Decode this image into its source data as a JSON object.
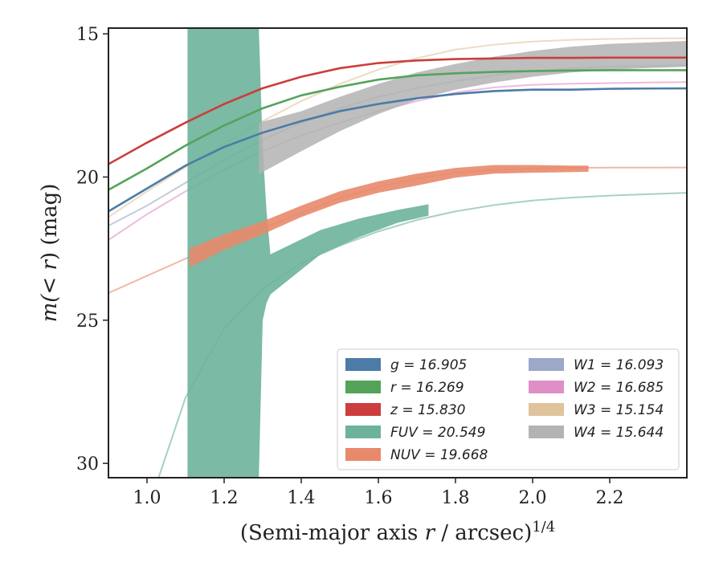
{
  "chart_data": {
    "type": "line",
    "xlabel_main": "(Semi-major axis ",
    "xlabel_var": "r",
    "xlabel_unit": " / arcsec)",
    "xlabel_exp": "1/4",
    "ylabel_pre": "m(< ",
    "ylabel_var": "r",
    "ylabel_post": ") (mag)",
    "xlim": [
      0.9,
      2.4
    ],
    "ylim": [
      30.5,
      14.8
    ],
    "y_inverted": true,
    "xticks": [
      "1.0",
      "1.2",
      "1.4",
      "1.6",
      "1.8",
      "2.0",
      "2.2"
    ],
    "yticks": [
      "15",
      "20",
      "25",
      "30"
    ],
    "legend_position": "lower-right",
    "series": [
      {
        "name": "g = 16.905",
        "color": "#4c7ba8",
        "curve": {
          "x": [
            0.9,
            1.0,
            1.1,
            1.2,
            1.3,
            1.4,
            1.5,
            1.6,
            1.7,
            1.8,
            1.9,
            2.0,
            2.1,
            2.2,
            2.3,
            2.4
          ],
          "y": [
            21.2,
            20.4,
            19.6,
            18.95,
            18.45,
            18.05,
            17.7,
            17.45,
            17.25,
            17.1,
            17.0,
            16.95,
            16.95,
            16.92,
            16.91,
            16.905
          ]
        }
      },
      {
        "name": "r = 16.269",
        "color": "#55a35a",
        "curve": {
          "x": [
            0.9,
            1.0,
            1.1,
            1.2,
            1.3,
            1.4,
            1.5,
            1.6,
            1.7,
            1.8,
            1.9,
            2.0,
            2.1,
            2.2,
            2.3,
            2.4
          ],
          "y": [
            20.45,
            19.7,
            18.9,
            18.2,
            17.6,
            17.15,
            16.85,
            16.6,
            16.45,
            16.38,
            16.33,
            16.3,
            16.28,
            16.27,
            16.27,
            16.269
          ]
        }
      },
      {
        "name": "z = 15.830",
        "color": "#cc3d3d",
        "curve": {
          "x": [
            0.9,
            1.0,
            1.1,
            1.2,
            1.3,
            1.4,
            1.5,
            1.6,
            1.7,
            1.8,
            1.9,
            2.0,
            2.1,
            2.2,
            2.3,
            2.4
          ],
          "y": [
            19.55,
            18.8,
            18.1,
            17.45,
            16.9,
            16.5,
            16.2,
            16.02,
            15.93,
            15.88,
            15.86,
            15.84,
            15.84,
            15.83,
            15.83,
            15.83
          ]
        }
      },
      {
        "name": "FUV = 20.549",
        "color": "#6db39a",
        "curve": {
          "x": [
            1.03,
            1.1,
            1.2,
            1.3,
            1.4,
            1.5,
            1.6,
            1.7,
            1.8,
            1.9,
            2.0,
            2.1,
            2.2,
            2.3,
            2.4
          ],
          "y": [
            30.5,
            27.7,
            25.3,
            23.9,
            23.0,
            22.4,
            21.9,
            21.5,
            21.2,
            20.98,
            20.82,
            20.72,
            20.65,
            20.6,
            20.55
          ]
        },
        "band": {
          "x": [
            1.105,
            1.29,
            1.3,
            1.31,
            1.32,
            1.45,
            1.55,
            1.65,
            1.73
          ],
          "y_low": [
            30.5,
            30.5,
            25.0,
            24.4,
            24.1,
            22.7,
            22.1,
            21.6,
            21.35
          ],
          "y_high": [
            14.8,
            14.8,
            19.0,
            21.2,
            22.7,
            21.85,
            21.45,
            21.15,
            20.95
          ]
        }
      },
      {
        "name": "NUV = 19.668",
        "color": "#e8896b",
        "curve": {
          "x": [
            0.9,
            1.0,
            1.1,
            1.2,
            1.3,
            1.4,
            1.5,
            1.6,
            1.7,
            1.8,
            1.9,
            2.0,
            2.1,
            2.2,
            2.3,
            2.4
          ],
          "y": [
            24.05,
            23.45,
            22.85,
            22.3,
            21.8,
            21.25,
            20.75,
            20.35,
            20.05,
            19.85,
            19.75,
            19.7,
            19.68,
            19.67,
            19.67,
            19.668
          ]
        },
        "band": {
          "x": [
            1.11,
            1.2,
            1.3,
            1.4,
            1.5,
            1.6,
            1.7,
            1.8,
            1.9,
            2.0,
            2.1,
            2.145
          ],
          "y_low": [
            23.15,
            22.55,
            22.0,
            21.4,
            20.9,
            20.55,
            20.3,
            20.02,
            19.88,
            19.85,
            19.83,
            19.82
          ],
          "y_high": [
            22.5,
            22.0,
            21.55,
            21.0,
            20.5,
            20.15,
            19.88,
            19.68,
            19.58,
            19.58,
            19.6,
            19.6
          ]
        }
      },
      {
        "name": "W1 = 16.093",
        "color": "#9ba8c8",
        "curve": {
          "x": [
            0.9,
            1.0,
            1.1,
            1.2,
            1.3,
            1.4,
            1.5,
            1.6,
            1.7,
            1.8,
            1.9,
            2.0,
            2.1,
            2.2,
            2.3,
            2.4
          ],
          "y": [
            21.7,
            21.0,
            20.2,
            19.4,
            18.7,
            18.1,
            17.6,
            17.2,
            16.9,
            16.65,
            16.45,
            16.3,
            16.2,
            16.15,
            16.12,
            16.093
          ]
        }
      },
      {
        "name": "W2 = 16.685",
        "color": "#dd8fc6",
        "curve": {
          "x": [
            0.9,
            1.0,
            1.1,
            1.2,
            1.3,
            1.4,
            1.5,
            1.6,
            1.7,
            1.8,
            1.9,
            2.0,
            2.1,
            2.2,
            2.3,
            2.4
          ],
          "y": [
            22.2,
            21.3,
            20.5,
            19.75,
            19.1,
            18.55,
            18.1,
            17.7,
            17.35,
            17.05,
            16.87,
            16.78,
            16.74,
            16.72,
            16.7,
            16.685
          ]
        }
      },
      {
        "name": "W3 = 15.154",
        "color": "#dfc39c",
        "curve": {
          "x": [
            0.9,
            1.0,
            1.1,
            1.2,
            1.3,
            1.4,
            1.5,
            1.6,
            1.7,
            1.8,
            1.9,
            2.0,
            2.1,
            2.2,
            2.3,
            2.4
          ],
          "y": [
            21.4,
            20.5,
            19.65,
            18.85,
            18.05,
            17.35,
            16.75,
            16.25,
            15.85,
            15.55,
            15.38,
            15.27,
            15.21,
            15.18,
            15.16,
            15.154
          ]
        }
      },
      {
        "name": "W4 = 15.644",
        "color": "#b3b3b3",
        "band": {
          "x": [
            1.29,
            1.4,
            1.5,
            1.6,
            1.7,
            1.8,
            1.9,
            2.0,
            2.1,
            2.2,
            2.3,
            2.4
          ],
          "y_low": [
            19.9,
            19.1,
            18.4,
            17.8,
            17.3,
            16.95,
            16.7,
            16.5,
            16.35,
            16.25,
            16.2,
            16.15
          ],
          "y_high": [
            18.1,
            17.7,
            17.2,
            16.75,
            16.35,
            16.05,
            15.8,
            15.6,
            15.45,
            15.35,
            15.3,
            15.25
          ]
        }
      }
    ]
  }
}
